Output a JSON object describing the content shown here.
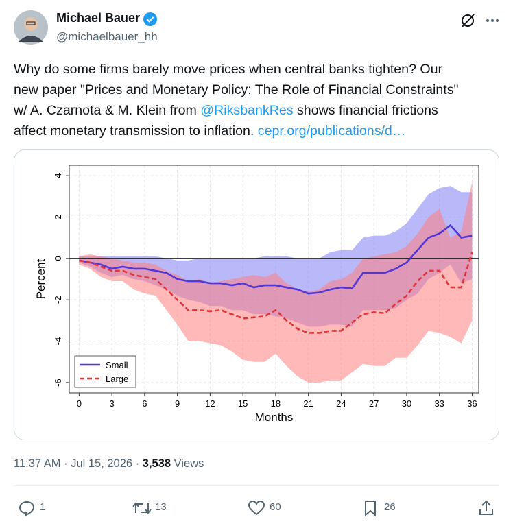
{
  "author": {
    "name": "Michael Bauer",
    "handle": "@michaelbauer_hh"
  },
  "tweet": {
    "text_parts": [
      "Why do some firms barely move prices when central banks tighten? Our",
      "new paper \"Prices and Monetary Policy: The Role of Financial Constraints\"",
      "w/ A. Czarnota & M. Klein from ",
      "@RiksbankRes",
      " shows financial frictions",
      "affect monetary transmission to inflation. ",
      "cepr.org/publications/d…"
    ]
  },
  "meta": {
    "time": "11:37 AM",
    "separator": "·",
    "date": "Jul 15, 2026",
    "views": "3,538",
    "views_label": "Views"
  },
  "actions": {
    "replies": 1,
    "reposts": 13,
    "likes": 60,
    "bookmarks": 26
  },
  "chart_data": {
    "type": "line",
    "xlabel": "Months",
    "ylabel": "Percent",
    "x": [
      0,
      1,
      2,
      3,
      4,
      5,
      6,
      7,
      8,
      9,
      10,
      11,
      12,
      13,
      14,
      15,
      16,
      17,
      18,
      19,
      20,
      21,
      22,
      23,
      24,
      25,
      26,
      27,
      28,
      29,
      30,
      31,
      32,
      33,
      34,
      35,
      36
    ],
    "xlim": [
      -0.9,
      36.6
    ],
    "ylim": [
      -6.5,
      4.5
    ],
    "xticks": [
      0,
      3,
      6,
      9,
      12,
      15,
      18,
      21,
      24,
      27,
      30,
      33,
      36
    ],
    "yticks": [
      -6,
      -4,
      -2,
      0,
      2,
      4
    ],
    "grid": true,
    "reference_line": 0,
    "legend": "lower left",
    "series": [
      {
        "name": "Small",
        "color": "#5236d6",
        "band_color": "#7f7ff5",
        "dash": false,
        "values": [
          -0.1,
          -0.2,
          -0.3,
          -0.5,
          -0.4,
          -0.5,
          -0.5,
          -0.6,
          -0.7,
          -1.0,
          -1.1,
          -1.1,
          -1.2,
          -1.2,
          -1.3,
          -1.2,
          -1.4,
          -1.3,
          -1.3,
          -1.4,
          -1.5,
          -1.7,
          -1.65,
          -1.5,
          -1.4,
          -1.45,
          -0.7,
          -0.7,
          -0.7,
          -0.5,
          -0.2,
          0.4,
          1.0,
          1.2,
          1.6,
          1.0,
          1.1
        ],
        "upper": [
          0.1,
          0.1,
          0.1,
          0.1,
          0.1,
          0.1,
          0.1,
          0.1,
          0,
          -0.1,
          -0.1,
          0,
          0,
          0,
          0,
          0,
          0,
          0.1,
          0.1,
          0.1,
          0,
          0,
          0,
          0.3,
          0.4,
          0.4,
          1.0,
          1.1,
          1.1,
          1.3,
          1.7,
          2.4,
          3.1,
          3.4,
          3.5,
          3.2,
          3.2
        ],
        "lower": [
          -0.2,
          -0.4,
          -0.7,
          -0.9,
          -0.8,
          -1.0,
          -1.1,
          -1.3,
          -1.5,
          -1.8,
          -2.0,
          -2.1,
          -2.3,
          -2.3,
          -2.5,
          -2.5,
          -2.7,
          -2.7,
          -2.8,
          -2.9,
          -3.1,
          -3.3,
          -3.3,
          -3.2,
          -3.2,
          -3.3,
          -2.5,
          -2.5,
          -2.5,
          -2.4,
          -2.0,
          -1.7,
          -1.0,
          -0.7,
          -0.3,
          -1.2,
          -1.0
        ]
      },
      {
        "name": "Large",
        "color": "#e3343a",
        "band_color": "#ff7f7f",
        "dash": true,
        "values": [
          -0.1,
          -0.2,
          -0.4,
          -0.6,
          -0.6,
          -0.8,
          -0.9,
          -1.0,
          -1.5,
          -2.0,
          -2.5,
          -2.5,
          -2.55,
          -2.5,
          -2.7,
          -2.9,
          -2.85,
          -2.8,
          -2.5,
          -3.0,
          -3.4,
          -3.6,
          -3.6,
          -3.5,
          -3.5,
          -3.1,
          -2.7,
          -2.6,
          -2.65,
          -2.2,
          -1.8,
          -1.1,
          -0.6,
          -0.6,
          -1.4,
          -1.4,
          0.3
        ],
        "upper": [
          0.1,
          0.2,
          0.1,
          0,
          -0.1,
          -0.2,
          -0.2,
          -0.3,
          -0.6,
          -0.8,
          -1.1,
          -1.0,
          -1.2,
          -1.1,
          -1.0,
          -0.9,
          -0.8,
          -0.9,
          -0.7,
          -1.2,
          -1.5,
          -1.6,
          -1.5,
          -1.1,
          -1.0,
          -0.7,
          0,
          0.1,
          0.2,
          0.3,
          0.6,
          1.2,
          2.0,
          2.4,
          1.0,
          1.3,
          3.7
        ],
        "lower": [
          -0.3,
          -0.5,
          -0.9,
          -1.1,
          -1.1,
          -1.5,
          -1.7,
          -1.8,
          -2.5,
          -3.2,
          -4.0,
          -4.0,
          -4.1,
          -4.2,
          -4.5,
          -4.9,
          -5.0,
          -5.0,
          -4.6,
          -5.2,
          -5.7,
          -6.0,
          -6.0,
          -5.9,
          -5.9,
          -5.5,
          -5.1,
          -5.2,
          -5.2,
          -4.8,
          -4.8,
          -4.2,
          -3.5,
          -3.6,
          -3.8,
          -4.1,
          -3.0
        ]
      }
    ]
  }
}
